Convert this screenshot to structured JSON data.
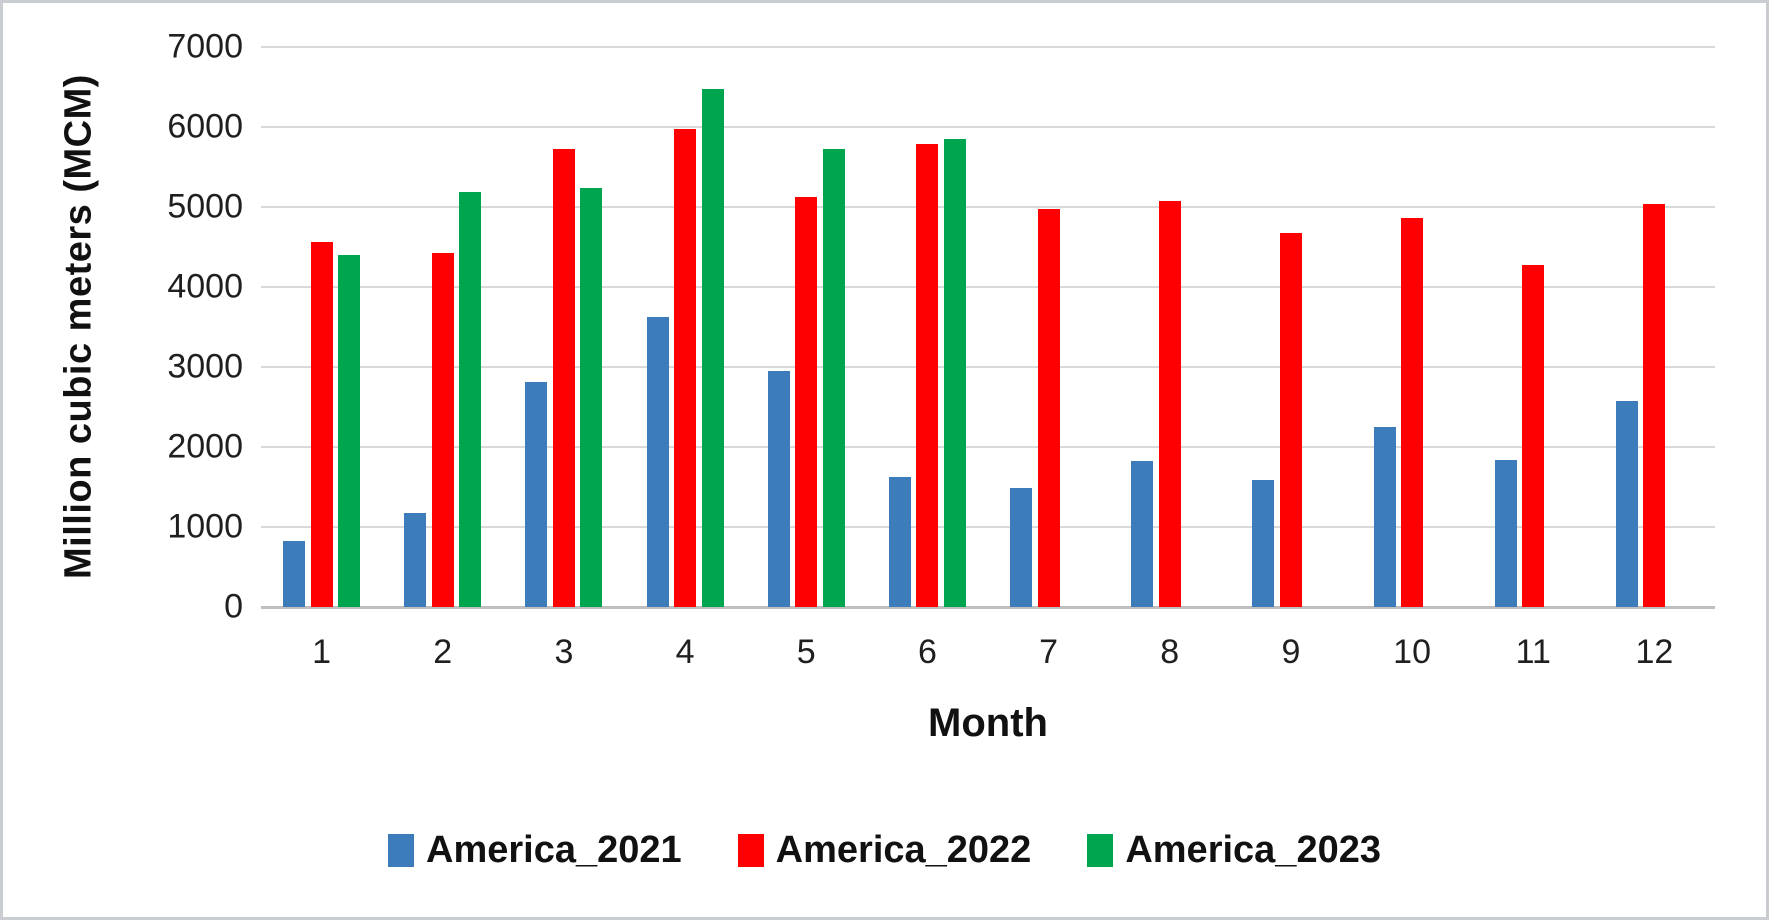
{
  "chart_data": {
    "type": "bar",
    "title": "",
    "xlabel": "Month",
    "ylabel": "Million cubic meters (MCM)",
    "categories": [
      "1",
      "2",
      "3",
      "4",
      "5",
      "6",
      "7",
      "8",
      "9",
      "10",
      "11",
      "12"
    ],
    "series": [
      {
        "name": "America_2021",
        "color": "#3D7CBB",
        "values": [
          820,
          1180,
          2810,
          3630,
          2950,
          1630,
          1490,
          1830,
          1590,
          2250,
          1840,
          2570
        ]
      },
      {
        "name": "America_2022",
        "color": "#FF0000",
        "values": [
          4560,
          4430,
          5730,
          5970,
          5120,
          5790,
          4980,
          5080,
          4670,
          4860,
          4270,
          5040
        ]
      },
      {
        "name": "America_2023",
        "color": "#00A550",
        "values": [
          4400,
          5190,
          5240,
          6480,
          5730,
          5850,
          null,
          null,
          null,
          null,
          null,
          null
        ]
      }
    ],
    "ylim": [
      0,
      7000
    ],
    "ytick_step": 1000,
    "ytick_labels": [
      "0",
      "1000",
      "2000",
      "3000",
      "4000",
      "5000",
      "6000",
      "7000"
    ],
    "grid": "horizontal",
    "gridline_color": "#d9d9d9",
    "axis_line_color": "#bfbfbf",
    "legend_position": "bottom"
  }
}
